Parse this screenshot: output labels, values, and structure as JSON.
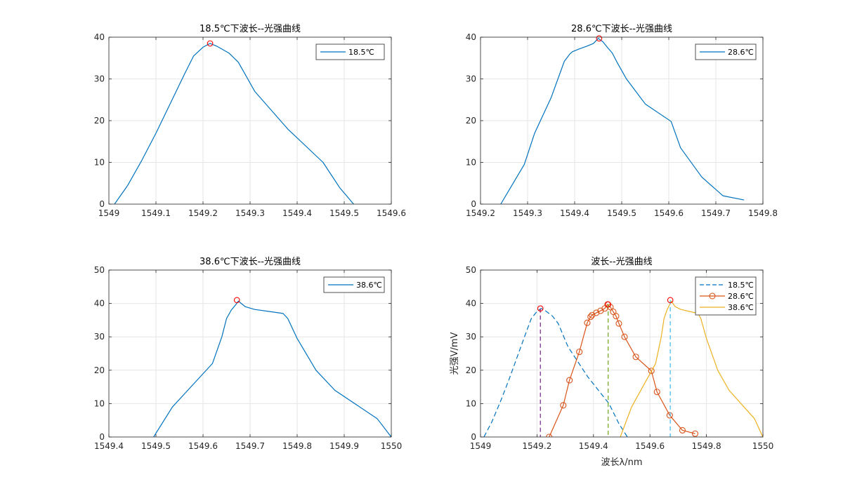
{
  "figure": {
    "background": "#ffffff"
  },
  "chart_data": [
    {
      "type": "line",
      "title": "18.5℃下波长--光强曲线",
      "xlabel": "",
      "ylabel": "",
      "xlim": [
        1549,
        1549.6
      ],
      "ylim": [
        0,
        40
      ],
      "xticks": [
        1549,
        1549.1,
        1549.2,
        1549.3,
        1549.4,
        1549.5,
        1549.6
      ],
      "xtick_labels": [
        "1549",
        "1549.1",
        "1549.2",
        "1549.3",
        "1549.4",
        "1549.5",
        "1549.6"
      ],
      "yticks": [
        0,
        10,
        20,
        30,
        40
      ],
      "ytick_labels": [
        "0",
        "10",
        "20",
        "30",
        "40"
      ],
      "grid": true,
      "legend": "top-right",
      "series": [
        {
          "name": "18.5℃",
          "color": "#0072BD",
          "dash": "solid",
          "marker": "none",
          "x": [
            1549.012,
            1549.04,
            1549.07,
            1549.1,
            1549.13,
            1549.16,
            1549.18,
            1549.2,
            1549.215,
            1549.23,
            1549.255,
            1549.275,
            1549.31,
            1549.38,
            1549.455,
            1549.49,
            1549.52
          ],
          "y": [
            0,
            4.5,
            10.5,
            17,
            24,
            31,
            35.5,
            37.6,
            38.5,
            37.8,
            36.2,
            34,
            27,
            18,
            10,
            4,
            0
          ]
        }
      ],
      "peak": {
        "x": 1549.215,
        "y": 38.5,
        "color": "#FF0000"
      }
    },
    {
      "type": "line",
      "title": "28.6℃下波长--光强曲线",
      "xlabel": "",
      "ylabel": "",
      "xlim": [
        1549.2,
        1549.8
      ],
      "ylim": [
        0,
        40
      ],
      "xticks": [
        1549.2,
        1549.3,
        1549.4,
        1549.5,
        1549.6,
        1549.7,
        1549.8
      ],
      "xtick_labels": [
        "1549.2",
        "1549.3",
        "1549.4",
        "1549.5",
        "1549.6",
        "1549.7",
        "1549.8"
      ],
      "yticks": [
        0,
        10,
        20,
        30,
        40
      ],
      "ytick_labels": [
        "0",
        "10",
        "20",
        "30",
        "40"
      ],
      "grid": true,
      "legend": "top-right",
      "series": [
        {
          "name": "28.6℃",
          "color": "#0072BD",
          "dash": "solid",
          "marker": "none",
          "x": [
            1549.243,
            1549.293,
            1549.315,
            1549.35,
            1549.378,
            1549.39,
            1549.395,
            1549.41,
            1549.425,
            1549.44,
            1549.45,
            1549.46,
            1549.47,
            1549.48,
            1549.49,
            1549.51,
            1549.55,
            1549.605,
            1549.625,
            1549.67,
            1549.715,
            1549.76
          ],
          "y": [
            0,
            9.5,
            17,
            25.5,
            34.2,
            36,
            36.5,
            37.2,
            37.8,
            38.5,
            39.7,
            38.9,
            37.5,
            36.2,
            34,
            30,
            24,
            19.8,
            13.5,
            6.5,
            2,
            1
          ]
        }
      ],
      "peak": {
        "x": 1549.452,
        "y": 39.7,
        "color": "#FF0000"
      }
    },
    {
      "type": "line",
      "title": "38.6℃下波长--光强曲线",
      "xlabel": "",
      "ylabel": "",
      "xlim": [
        1549.4,
        1550
      ],
      "ylim": [
        0,
        50
      ],
      "xticks": [
        1549.4,
        1549.5,
        1549.6,
        1549.7,
        1549.8,
        1549.9,
        1550
      ],
      "xtick_labels": [
        "1549.4",
        "1549.5",
        "1549.6",
        "1549.7",
        "1549.8",
        "1549.9",
        "1550"
      ],
      "yticks": [
        0,
        10,
        20,
        30,
        40,
        50
      ],
      "ytick_labels": [
        "0",
        "10",
        "20",
        "30",
        "40",
        "50"
      ],
      "grid": true,
      "legend": "top-right",
      "series": [
        {
          "name": "38.6℃",
          "color": "#0072BD",
          "dash": "solid",
          "marker": "none",
          "x": [
            1549.495,
            1549.535,
            1549.62,
            1549.64,
            1549.65,
            1549.66,
            1549.67,
            1549.675,
            1549.69,
            1549.71,
            1549.77,
            1549.78,
            1549.8,
            1549.84,
            1549.88,
            1549.97,
            1550
          ],
          "y": [
            0,
            9,
            22,
            30,
            35.5,
            38,
            39.7,
            40.7,
            39,
            38.2,
            37,
            35.5,
            29.5,
            20,
            14,
            5.5,
            0
          ]
        }
      ],
      "peak": {
        "x": 1549.672,
        "y": 41,
        "color": "#FF0000"
      }
    },
    {
      "type": "line",
      "title": "波长--光强曲线",
      "xlabel": "波长λ/nm",
      "ylabel": "光强V/mV",
      "xlim": [
        1549,
        1550
      ],
      "ylim": [
        0,
        50
      ],
      "xticks": [
        1549,
        1549.2,
        1549.4,
        1549.6,
        1549.8,
        1550
      ],
      "xtick_labels": [
        "1549",
        "1549.2",
        "1549.4",
        "1549.6",
        "1549.8",
        "1550"
      ],
      "yticks": [
        0,
        10,
        20,
        30,
        40,
        50
      ],
      "ytick_labels": [
        "0",
        "10",
        "20",
        "30",
        "40",
        "50"
      ],
      "grid": true,
      "legend": "top-right",
      "series": [
        {
          "name": "18.5℃",
          "color": "#0072BD",
          "dash": "dashed",
          "marker": "none",
          "x": [
            1549.012,
            1549.04,
            1549.07,
            1549.1,
            1549.13,
            1549.16,
            1549.18,
            1549.2,
            1549.215,
            1549.23,
            1549.255,
            1549.275,
            1549.31,
            1549.38,
            1549.455,
            1549.49,
            1549.52
          ],
          "y": [
            0,
            4.5,
            10.5,
            17,
            24,
            31,
            35.5,
            37.6,
            38.5,
            37.8,
            36.2,
            34,
            27,
            18,
            10,
            4,
            0
          ]
        },
        {
          "name": "28.6℃",
          "color": "#D95319",
          "dash": "solid",
          "marker": "circle",
          "x": [
            1549.243,
            1549.293,
            1549.315,
            1549.35,
            1549.378,
            1549.39,
            1549.395,
            1549.41,
            1549.425,
            1549.44,
            1549.45,
            1549.46,
            1549.47,
            1549.48,
            1549.49,
            1549.51,
            1549.55,
            1549.605,
            1549.625,
            1549.67,
            1549.715,
            1549.76
          ],
          "y": [
            0,
            9.5,
            17,
            25.5,
            34.2,
            36,
            36.5,
            37.2,
            37.8,
            38.5,
            39.7,
            38.9,
            37.5,
            36.2,
            34,
            30,
            24,
            19.8,
            13.5,
            6.5,
            2,
            1
          ]
        },
        {
          "name": "38.6℃",
          "color": "#EDB120",
          "dash": "solid",
          "marker": "none",
          "x": [
            1549.495,
            1549.535,
            1549.62,
            1549.64,
            1549.65,
            1549.66,
            1549.67,
            1549.675,
            1549.69,
            1549.71,
            1549.77,
            1549.78,
            1549.8,
            1549.84,
            1549.88,
            1549.97,
            1550
          ],
          "y": [
            0,
            9,
            22,
            30,
            35.5,
            38,
            39.7,
            40.7,
            39,
            38.2,
            37,
            35.5,
            29.5,
            20,
            14,
            5.5,
            0
          ]
        }
      ],
      "peaks": [
        {
          "x": 1549.212,
          "y": 38.5,
          "color": "#FF0000",
          "line_color": "#7E2F8E"
        },
        {
          "x": 1549.452,
          "y": 39.7,
          "color": "#FF0000",
          "line_color": "#77AC30"
        },
        {
          "x": 1549.672,
          "y": 41,
          "color": "#FF0000",
          "line_color": "#4DBEEE"
        }
      ]
    }
  ]
}
